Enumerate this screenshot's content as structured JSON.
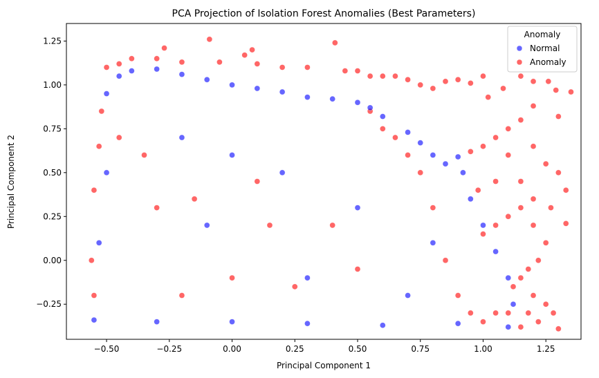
{
  "chart_data": {
    "type": "scatter",
    "title": "PCA Projection of Isolation Forest Anomalies (Best Parameters)",
    "xlabel": "Principal Component 1",
    "ylabel": "Principal Component 2",
    "xlim": [
      -0.66,
      1.39
    ],
    "ylim": [
      -0.45,
      1.35
    ],
    "x_ticks": [
      "−0.50",
      "−0.25",
      "0.00",
      "0.25",
      "0.50",
      "0.75",
      "1.00",
      "1.25"
    ],
    "x_tick_values": [
      -0.5,
      -0.25,
      0.0,
      0.25,
      0.5,
      0.75,
      1.0,
      1.25
    ],
    "y_ticks": [
      "−0.25",
      "0.00",
      "0.25",
      "0.50",
      "0.75",
      "1.00",
      "1.25"
    ],
    "y_tick_values": [
      -0.25,
      0.0,
      0.25,
      0.5,
      0.75,
      1.0,
      1.25
    ],
    "grid": false,
    "legend": {
      "title": "Anomaly",
      "placement": "top-right"
    },
    "series": [
      {
        "name": "Normal",
        "color": "#0000ff",
        "opacity": 0.6,
        "points": [
          [
            -0.55,
            -0.34
          ],
          [
            -0.5,
            0.95
          ],
          [
            -0.45,
            1.05
          ],
          [
            -0.4,
            1.08
          ],
          [
            -0.3,
            1.09
          ],
          [
            -0.2,
            1.06
          ],
          [
            -0.1,
            1.03
          ],
          [
            0.0,
            1.0
          ],
          [
            0.1,
            0.98
          ],
          [
            0.2,
            0.96
          ],
          [
            0.3,
            0.93
          ],
          [
            0.4,
            0.92
          ],
          [
            0.5,
            0.9
          ],
          [
            0.55,
            0.87
          ],
          [
            0.6,
            0.82
          ],
          [
            0.7,
            0.73
          ],
          [
            0.75,
            0.67
          ],
          [
            0.8,
            0.6
          ],
          [
            0.85,
            0.55
          ],
          [
            0.9,
            0.59
          ],
          [
            0.92,
            0.5
          ],
          [
            0.95,
            0.35
          ],
          [
            1.0,
            0.2
          ],
          [
            1.05,
            0.05
          ],
          [
            1.1,
            -0.1
          ],
          [
            1.12,
            -0.25
          ],
          [
            1.1,
            -0.38
          ],
          [
            0.9,
            -0.36
          ],
          [
            0.6,
            -0.37
          ],
          [
            0.3,
            -0.36
          ],
          [
            0.0,
            -0.35
          ],
          [
            -0.3,
            -0.35
          ],
          [
            -0.53,
            0.1
          ],
          [
            -0.5,
            0.5
          ],
          [
            -0.2,
            0.7
          ],
          [
            0.2,
            0.5
          ],
          [
            0.5,
            0.3
          ],
          [
            0.8,
            0.1
          ],
          [
            -0.1,
            0.2
          ],
          [
            0.3,
            -0.1
          ],
          [
            0.7,
            -0.2
          ],
          [
            0.0,
            0.6
          ]
        ]
      },
      {
        "name": "Anomaly",
        "color": "#ff0000",
        "opacity": 0.6,
        "points": [
          [
            -0.5,
            1.1
          ],
          [
            -0.45,
            1.12
          ],
          [
            -0.4,
            1.15
          ],
          [
            -0.3,
            1.15
          ],
          [
            -0.27,
            1.21
          ],
          [
            -0.55,
            0.4
          ],
          [
            -0.56,
            0.0
          ],
          [
            -0.55,
            -0.2
          ],
          [
            -0.52,
            0.85
          ],
          [
            -0.53,
            0.65
          ],
          [
            -0.2,
            1.13
          ],
          [
            -0.09,
            1.26
          ],
          [
            -0.05,
            1.13
          ],
          [
            0.05,
            1.17
          ],
          [
            0.08,
            1.2
          ],
          [
            0.1,
            1.12
          ],
          [
            0.2,
            1.1
          ],
          [
            0.3,
            1.1
          ],
          [
            0.41,
            1.24
          ],
          [
            0.45,
            1.08
          ],
          [
            0.5,
            1.08
          ],
          [
            0.55,
            1.05
          ],
          [
            0.6,
            1.05
          ],
          [
            0.65,
            1.05
          ],
          [
            0.7,
            1.03
          ],
          [
            0.75,
            1.0
          ],
          [
            0.8,
            0.98
          ],
          [
            0.85,
            1.02
          ],
          [
            0.9,
            1.03
          ],
          [
            0.95,
            1.01
          ],
          [
            1.0,
            1.05
          ],
          [
            1.02,
            0.93
          ],
          [
            1.08,
            0.98
          ],
          [
            1.15,
            1.05
          ],
          [
            1.2,
            1.02
          ],
          [
            1.26,
            1.02
          ],
          [
            1.29,
            0.97
          ],
          [
            1.35,
            0.96
          ],
          [
            1.2,
            0.88
          ],
          [
            1.15,
            0.8
          ],
          [
            1.1,
            0.75
          ],
          [
            1.05,
            0.7
          ],
          [
            1.0,
            0.65
          ],
          [
            0.95,
            0.62
          ],
          [
            1.1,
            0.6
          ],
          [
            1.2,
            0.65
          ],
          [
            1.25,
            0.55
          ],
          [
            1.3,
            0.5
          ],
          [
            1.3,
            0.82
          ],
          [
            1.33,
            0.4
          ],
          [
            1.33,
            0.21
          ],
          [
            1.27,
            0.3
          ],
          [
            1.2,
            0.35
          ],
          [
            1.15,
            0.3
          ],
          [
            1.1,
            0.25
          ],
          [
            1.05,
            0.2
          ],
          [
            1.0,
            0.15
          ],
          [
            0.98,
            0.4
          ],
          [
            1.05,
            0.45
          ],
          [
            1.15,
            0.45
          ],
          [
            1.2,
            0.2
          ],
          [
            1.25,
            0.1
          ],
          [
            1.22,
            0.0
          ],
          [
            1.18,
            -0.05
          ],
          [
            1.15,
            -0.1
          ],
          [
            1.12,
            -0.15
          ],
          [
            1.2,
            -0.2
          ],
          [
            1.25,
            -0.25
          ],
          [
            1.28,
            -0.3
          ],
          [
            1.22,
            -0.35
          ],
          [
            1.3,
            -0.39
          ],
          [
            1.15,
            -0.38
          ],
          [
            1.18,
            -0.3
          ],
          [
            1.1,
            -0.3
          ],
          [
            1.05,
            -0.3
          ],
          [
            1.0,
            -0.35
          ],
          [
            0.95,
            -0.3
          ],
          [
            0.9,
            -0.2
          ],
          [
            0.85,
            0.0
          ],
          [
            0.8,
            0.3
          ],
          [
            0.75,
            0.5
          ],
          [
            0.7,
            0.6
          ],
          [
            0.65,
            0.7
          ],
          [
            0.6,
            0.75
          ],
          [
            0.55,
            0.85
          ],
          [
            -0.45,
            0.7
          ],
          [
            -0.3,
            0.3
          ],
          [
            -0.15,
            0.35
          ],
          [
            0.1,
            0.45
          ],
          [
            0.25,
            -0.15
          ],
          [
            0.0,
            -0.1
          ],
          [
            -0.35,
            0.6
          ],
          [
            0.4,
            0.2
          ],
          [
            0.15,
            0.2
          ],
          [
            -0.2,
            -0.2
          ],
          [
            0.5,
            -0.05
          ]
        ]
      }
    ]
  }
}
